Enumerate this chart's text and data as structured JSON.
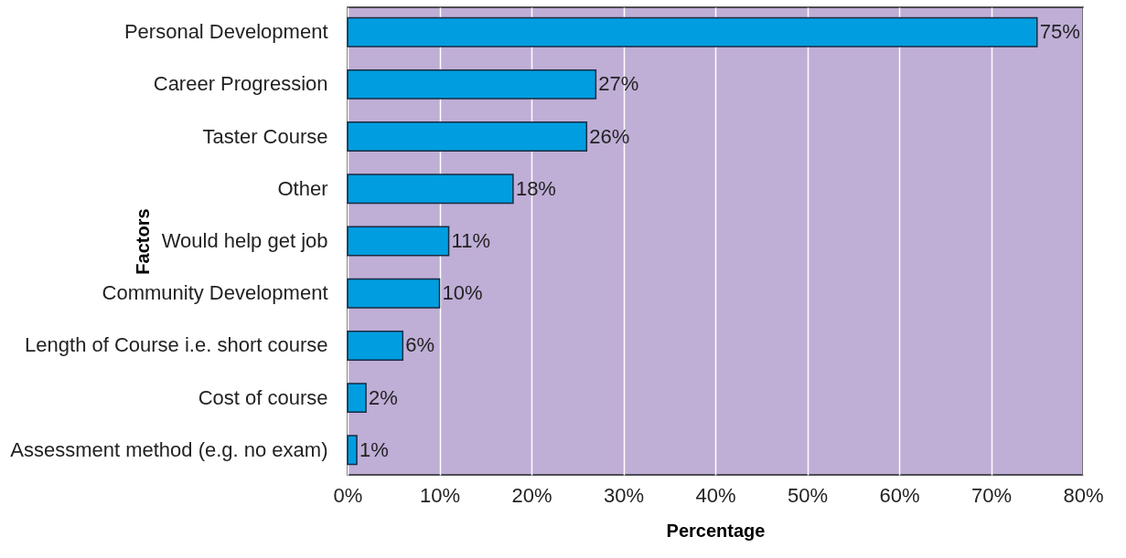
{
  "chart_data": {
    "type": "bar",
    "orientation": "horizontal",
    "categories": [
      "Personal Development",
      "Career Progression",
      "Taster Course",
      "Other",
      "Would help get job",
      "Community Development",
      "Length of Course i.e. short course",
      "Cost of course",
      "Assessment method (e.g. no exam)"
    ],
    "values": [
      75,
      27,
      26,
      18,
      11,
      10,
      6,
      2,
      1
    ],
    "value_labels": [
      "75%",
      "27%",
      "26%",
      "18%",
      "11%",
      "10%",
      "6%",
      "2%",
      "1%"
    ],
    "color": "#009ee0",
    "xlabel": "Percentage",
    "ylabel": "Factors",
    "xlim": [
      0,
      80
    ],
    "xticks": [
      {
        "value": 0,
        "label": "0%"
      },
      {
        "value": 10,
        "label": "10%"
      },
      {
        "value": 20,
        "label": "20%"
      },
      {
        "value": 30,
        "label": "30%"
      },
      {
        "value": 40,
        "label": "40%"
      },
      {
        "value": 50,
        "label": "50%"
      },
      {
        "value": 60,
        "label": "60%"
      },
      {
        "value": 70,
        "label": "70%"
      },
      {
        "value": 80,
        "label": "80%"
      }
    ],
    "grid": "x"
  }
}
